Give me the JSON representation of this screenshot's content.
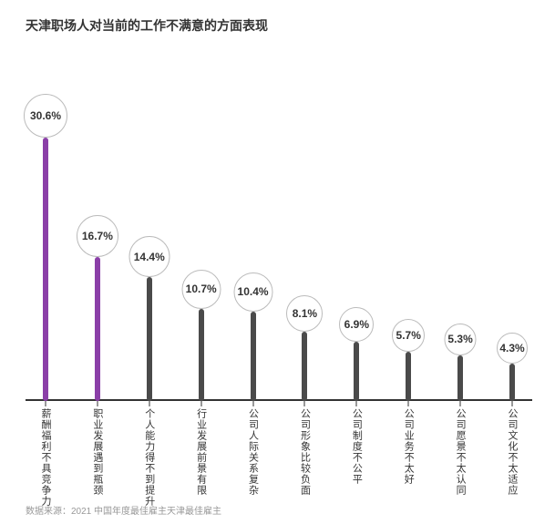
{
  "title": {
    "text": "天津职场人对当前的工作不满意的方面表现",
    "fontsize": 14,
    "color": "#333333"
  },
  "chart": {
    "type": "lollipop",
    "background_color": "#ffffff",
    "axis_color": "#333333",
    "y_max": 36,
    "bubble_border_color": "#bbbbbb",
    "bubble_fill": "#ffffff",
    "value_fontsize": 12,
    "label_fontsize": 11,
    "stick_width": 6,
    "highlight_color": "#8b3fa8",
    "normal_color": "#4a4a4a",
    "items": [
      {
        "label": "薪酬福利不具竞争力",
        "value": 30.6,
        "display": "30.6%",
        "color": "#8b3fa8",
        "bubble_size": 48
      },
      {
        "label": "职业发展遇到瓶颈",
        "value": 16.7,
        "display": "16.7%",
        "color": "#8b3fa8",
        "bubble_size": 46
      },
      {
        "label": "个人能力得不到提升",
        "value": 14.4,
        "display": "14.4%",
        "color": "#4a4a4a",
        "bubble_size": 45
      },
      {
        "label": "行业发展前景有限",
        "value": 10.7,
        "display": "10.7%",
        "color": "#4a4a4a",
        "bubble_size": 43
      },
      {
        "label": "公司人际关系复杂",
        "value": 10.4,
        "display": "10.4%",
        "color": "#4a4a4a",
        "bubble_size": 43
      },
      {
        "label": "公司形象比较负面",
        "value": 8.1,
        "display": "8.1%",
        "color": "#4a4a4a",
        "bubble_size": 40
      },
      {
        "label": "公司制度不公平",
        "value": 6.9,
        "display": "6.9%",
        "color": "#4a4a4a",
        "bubble_size": 38
      },
      {
        "label": "公司业务不太好",
        "value": 5.7,
        "display": "5.7%",
        "color": "#4a4a4a",
        "bubble_size": 36
      },
      {
        "label": "公司愿景不太认同",
        "value": 5.3,
        "display": "5.3%",
        "color": "#4a4a4a",
        "bubble_size": 35
      },
      {
        "label": "公司文化不太适应",
        "value": 4.3,
        "display": "4.3%",
        "color": "#4a4a4a",
        "bubble_size": 34
      }
    ]
  },
  "source": {
    "prefix": "数据来源：",
    "text": "2021 中国年度最佳雇主天津最佳雇主",
    "fontsize": 10,
    "color": "#999999"
  }
}
